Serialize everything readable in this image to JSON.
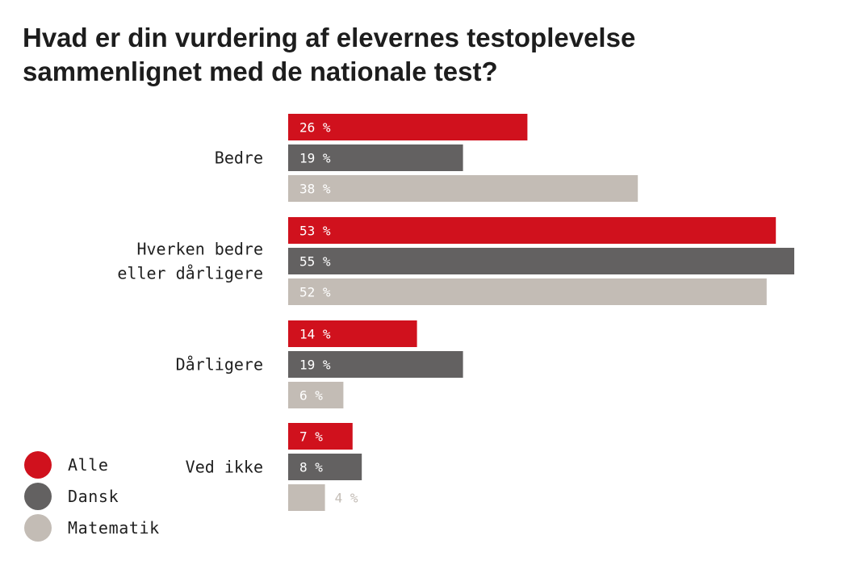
{
  "title_lines": [
    "Hvad er din vurdering af elevernes testoplevelse",
    "sammenlignet med de nationale test?"
  ],
  "legend": [
    {
      "label": "Alle",
      "color": "#d0111d"
    },
    {
      "label": "Dansk",
      "color": "#636161"
    },
    {
      "label": "Matematik",
      "color": "#c3bcb5"
    }
  ],
  "chart_data": {
    "type": "bar",
    "orientation": "horizontal",
    "categories": [
      [
        "Bedre"
      ],
      [
        "Hverken bedre",
        "eller dårligere"
      ],
      [
        "Dårligere"
      ],
      [
        "Ved ikke"
      ]
    ],
    "series": [
      {
        "name": "Alle",
        "color": "#d0111d",
        "values": [
          26,
          53,
          14,
          7
        ],
        "labels": [
          "26 %",
          "53 %",
          "14 %",
          "7 %"
        ]
      },
      {
        "name": "Dansk",
        "color": "#636161",
        "values": [
          19,
          55,
          19,
          8
        ],
        "labels": [
          "19 %",
          "55 %",
          "19 %",
          "8 %"
        ]
      },
      {
        "name": "Matematik",
        "color": "#c3bcb5",
        "values": [
          38,
          52,
          6,
          4
        ],
        "labels": [
          "38 %",
          "52 %",
          "6 %",
          "4 %"
        ]
      }
    ],
    "xlim": [
      0,
      56
    ],
    "grid": false,
    "legend_position": "bottom-left"
  }
}
